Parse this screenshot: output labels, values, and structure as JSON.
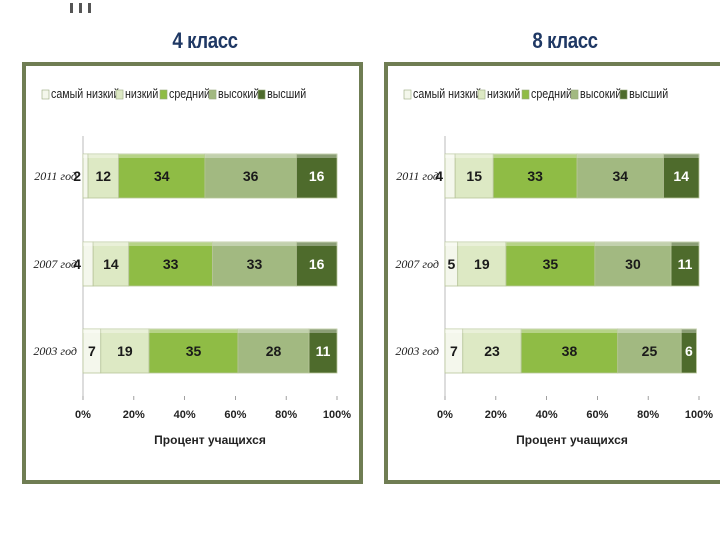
{
  "chart_data": [
    {
      "type": "bar",
      "stacked": true,
      "orientation": "horizontal",
      "title": "4 класс",
      "categories": [
        "2011 год",
        "2007 год",
        "2003 год"
      ],
      "series": [
        {
          "name": "самый низкий",
          "values": [
            2,
            4,
            7
          ],
          "color": "#f4f7ec"
        },
        {
          "name": "низкий",
          "values": [
            12,
            14,
            19
          ],
          "color": "#dde9c4"
        },
        {
          "name": "средний",
          "values": [
            34,
            33,
            35
          ],
          "color": "#8fbc45"
        },
        {
          "name": "высокий",
          "values": [
            36,
            33,
            28
          ],
          "color": "#a2b981"
        },
        {
          "name": "высший",
          "values": [
            16,
            16,
            11
          ],
          "color": "#4e6b2c"
        }
      ],
      "xlabel": "Процент учащихся",
      "xticks": [
        "0%",
        "20%",
        "40%",
        "60%",
        "80%",
        "100%"
      ],
      "xlim": [
        0,
        100
      ],
      "legend": "top"
    },
    {
      "type": "bar",
      "stacked": true,
      "orientation": "horizontal",
      "title": "8 класс",
      "categories": [
        "2011 год",
        "2007 год",
        "2003 год"
      ],
      "series": [
        {
          "name": "самый низкий",
          "values": [
            4,
            5,
            7
          ],
          "color": "#f4f7ec"
        },
        {
          "name": "низкий",
          "values": [
            15,
            19,
            23
          ],
          "color": "#dde9c4"
        },
        {
          "name": "средний",
          "values": [
            33,
            35,
            38
          ],
          "color": "#8fbc45"
        },
        {
          "name": "высокий",
          "values": [
            34,
            30,
            25
          ],
          "color": "#a2b981"
        },
        {
          "name": "высший",
          "values": [
            14,
            11,
            6
          ],
          "color": "#4e6b2c"
        }
      ],
      "xlabel": "Процент учащихся",
      "xticks": [
        "0%",
        "20%",
        "40%",
        "60%",
        "80%",
        "100%"
      ],
      "xlim": [
        0,
        100
      ],
      "legend": "top"
    }
  ]
}
